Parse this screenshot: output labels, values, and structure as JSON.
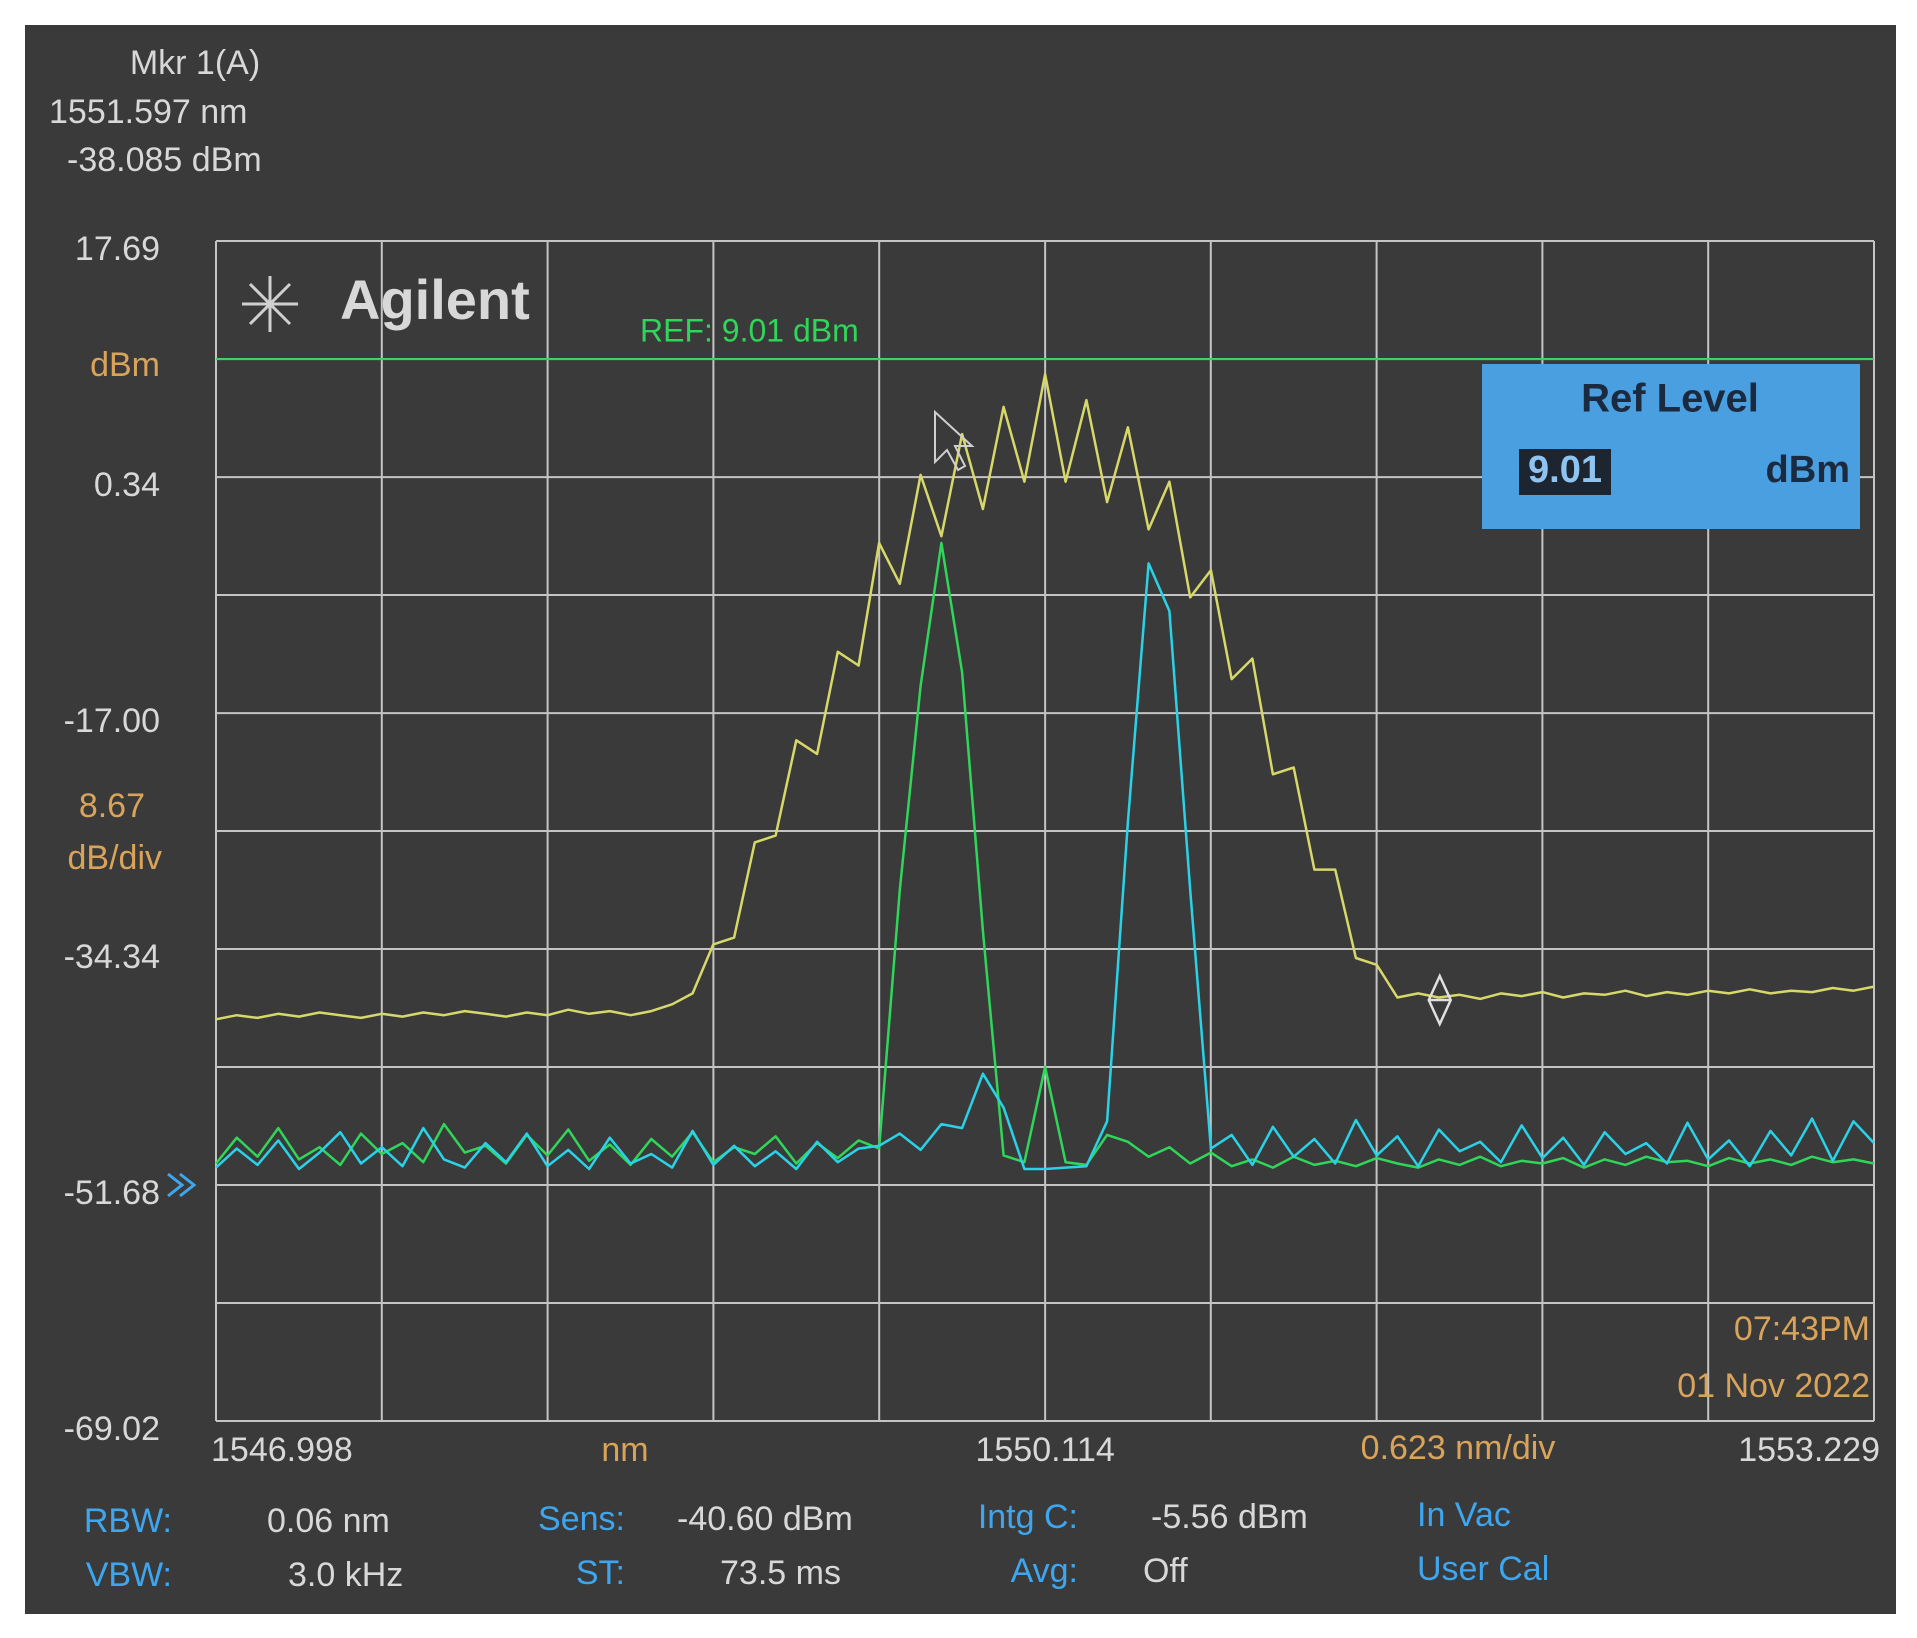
{
  "chart_data": {
    "type": "line",
    "x": [
      1546.998,
      1547.076,
      1547.154,
      1547.232,
      1547.31,
      1547.387,
      1547.465,
      1547.543,
      1547.621,
      1547.699,
      1547.777,
      1547.855,
      1547.933,
      1548.011,
      1548.088,
      1548.166,
      1548.244,
      1548.322,
      1548.4,
      1548.478,
      1548.556,
      1548.634,
      1548.712,
      1548.789,
      1548.867,
      1548.945,
      1549.023,
      1549.101,
      1549.179,
      1549.257,
      1549.335,
      1549.413,
      1549.49,
      1549.568,
      1549.646,
      1549.724,
      1549.802,
      1549.88,
      1549.958,
      1550.036,
      1550.114,
      1550.191,
      1550.269,
      1550.347,
      1550.425,
      1550.503,
      1550.581,
      1550.659,
      1550.737,
      1550.815,
      1550.893,
      1550.97,
      1551.048,
      1551.126,
      1551.204,
      1551.282,
      1551.36,
      1551.438,
      1551.516,
      1551.594,
      1551.672,
      1551.749,
      1551.827,
      1551.905,
      1551.983,
      1552.061,
      1552.139,
      1552.217,
      1552.295,
      1552.373,
      1552.451,
      1552.528,
      1552.606,
      1552.684,
      1552.762,
      1552.84,
      1552.918,
      1552.996,
      1553.074,
      1553.152,
      1553.229
    ],
    "series": [
      {
        "color": "#d6d86a",
        "values": [
          -39.5,
          -39.2,
          -39.4,
          -39.1,
          -39.3,
          -39.0,
          -39.2,
          -39.4,
          -39.1,
          -39.3,
          -39.0,
          -39.2,
          -38.9,
          -39.1,
          -39.3,
          -39.0,
          -39.2,
          -38.8,
          -39.1,
          -38.9,
          -39.2,
          -38.9,
          -38.4,
          -37.6,
          -34.0,
          -33.5,
          -26.5,
          -26.0,
          -19.0,
          -20.0,
          -12.5,
          -13.5,
          -4.5,
          -7.5,
          0.5,
          -4.0,
          3.5,
          -2.0,
          5.5,
          0.0,
          7.9,
          0.0,
          6.0,
          -1.5,
          4.0,
          -3.5,
          0.0,
          -8.5,
          -6.5,
          -14.5,
          -13.0,
          -21.5,
          -21.0,
          -28.5,
          -28.5,
          -35.0,
          -35.5,
          -37.9,
          -37.6,
          -37.9,
          -37.7,
          -38.0,
          -37.6,
          -37.8,
          -37.5,
          -37.9,
          -37.6,
          -37.7,
          -37.4,
          -37.8,
          -37.5,
          -37.7,
          -37.4,
          -37.6,
          -37.3,
          -37.6,
          -37.4,
          -37.5,
          -37.2,
          -37.4,
          -37.1
        ]
      },
      {
        "color": "#2fd65a",
        "values": [
          -50.1,
          -48.2,
          -49.6,
          -47.5,
          -49.8,
          -48.9,
          -50.2,
          -47.9,
          -49.4,
          -48.6,
          -50.0,
          -47.2,
          -49.3,
          -48.8,
          -50.1,
          -48.0,
          -49.5,
          -47.6,
          -49.9,
          -48.7,
          -50.2,
          -48.3,
          -49.6,
          -47.8,
          -50.0,
          -48.9,
          -49.4,
          -48.1,
          -50.1,
          -48.6,
          -49.7,
          -48.4,
          -49.0,
          -30.0,
          -15.0,
          -4.5,
          -14.0,
          -33.0,
          -49.5,
          -50.0,
          -43.0,
          -50.0,
          -50.2,
          -48.0,
          -48.5,
          -49.6,
          -48.9,
          -50.1,
          -49.3,
          -50.3,
          -49.8,
          -50.4,
          -49.6,
          -50.2,
          -49.9,
          -50.3,
          -49.7,
          -50.1,
          -50.4,
          -49.8,
          -50.2,
          -49.6,
          -50.3,
          -49.9,
          -50.1,
          -49.7,
          -50.4,
          -49.8,
          -50.2,
          -49.6,
          -50.0,
          -49.9,
          -50.3,
          -49.7,
          -50.1,
          -49.8,
          -50.2,
          -49.6,
          -50.0,
          -49.8,
          -50.1
        ]
      },
      {
        "color": "#2ad2e8",
        "values": [
          -50.4,
          -49.0,
          -50.2,
          -48.4,
          -50.5,
          -49.3,
          -47.8,
          -50.1,
          -48.9,
          -50.3,
          -47.5,
          -49.8,
          -50.4,
          -48.6,
          -50.0,
          -47.9,
          -50.3,
          -49.1,
          -50.5,
          -48.2,
          -50.1,
          -49.4,
          -50.4,
          -47.7,
          -50.2,
          -48.8,
          -50.3,
          -49.2,
          -50.5,
          -48.5,
          -50.0,
          -49.0,
          -48.8,
          -47.9,
          -49.1,
          -47.2,
          -47.5,
          -43.5,
          -46.0,
          -50.5,
          -50.5,
          -50.4,
          -50.3,
          -47.0,
          -25.0,
          -6.0,
          -9.5,
          -30.0,
          -49.0,
          -48.0,
          -50.2,
          -47.4,
          -49.6,
          -48.3,
          -50.1,
          -46.9,
          -49.5,
          -48.1,
          -50.3,
          -47.6,
          -49.2,
          -48.5,
          -50.0,
          -47.3,
          -49.7,
          -48.2,
          -50.2,
          -47.8,
          -49.4,
          -48.6,
          -50.1,
          -47.1,
          -49.8,
          -48.4,
          -50.3,
          -47.7,
          -49.5,
          -46.8,
          -49.9,
          -47.0,
          -48.6
        ]
      }
    ],
    "xlim": [
      1546.998,
      1553.229
    ],
    "xticks": [
      1546.998,
      1550.114,
      1553.229
    ],
    "ylim": [
      -69.02,
      17.69
    ],
    "yticks": [
      17.69,
      0.34,
      {
        "value": -17,
        "label": "-17.00"
      },
      -34.34,
      -51.68,
      -69.02
    ],
    "x_divisions": 10,
    "y_divisions": 10,
    "grid": true,
    "y_unit": "dBm",
    "y_scale": 8.67,
    "y_scale_unit": "dB/div",
    "x_unit": "nm",
    "x_scale": "0.623 nm/div",
    "reference": {
      "value": 9.01,
      "label": "REF: 9.01 dBm",
      "color": "#2fd65a"
    },
    "marker": {
      "name": "Mkr 1(A)",
      "x": 1551.597,
      "y": -38.085,
      "x_label": "1551.597 nm",
      "y_label": "-38.085 dBm"
    }
  },
  "brand": "Agilent",
  "ref_level_box": {
    "title": "Ref Level",
    "value": "9.01",
    "unit": "dBm"
  },
  "timestamp": {
    "time": "07:43PM",
    "date": "01 Nov 2022"
  },
  "settings": [
    {
      "label": "RBW:",
      "value": "0.06 nm"
    },
    {
      "label": "VBW:",
      "value": "3.0 kHz"
    },
    {
      "label": "Sens:",
      "value": "-40.60 dBm"
    },
    {
      "label": "ST:",
      "value": "73.5 ms"
    },
    {
      "label": "Intg C:",
      "value": "-5.56 dBm"
    },
    {
      "label": "Avg:",
      "value": "Off"
    }
  ],
  "status": [
    "In Vac",
    "User Cal"
  ]
}
